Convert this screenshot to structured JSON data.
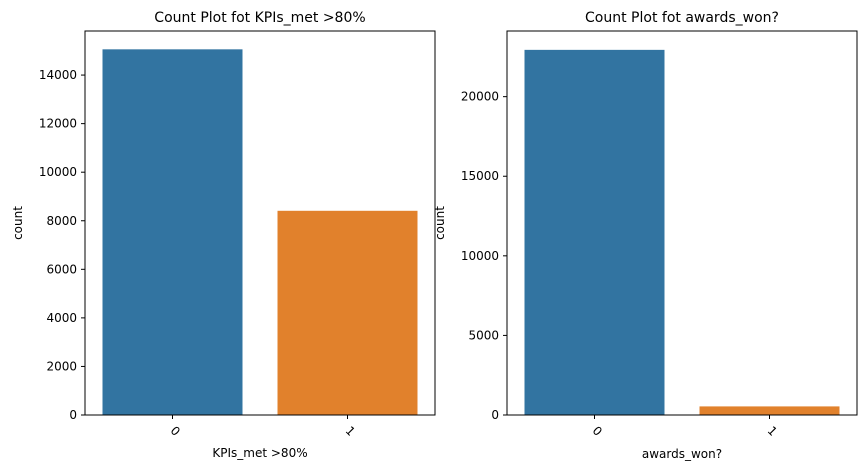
{
  "chart_data": [
    {
      "type": "bar",
      "title": "Count Plot fot KPIs_met >80%",
      "xlabel": "KPIs_met >80%",
      "ylabel": "count",
      "categories": [
        "0",
        "1"
      ],
      "values": [
        15060,
        8410
      ],
      "colors": [
        "#3274a1",
        "#e1812c"
      ],
      "ylim": [
        0,
        15815
      ],
      "yticks": [
        0,
        2000,
        4000,
        6000,
        8000,
        10000,
        12000,
        14000
      ],
      "xtick_rotation": 45,
      "grid": false,
      "legend": "none"
    },
    {
      "type": "bar",
      "title": "Count Plot fot awards_won?",
      "xlabel": "awards_won?",
      "ylabel": "count",
      "categories": [
        "0",
        "1"
      ],
      "values": [
        22940,
        540
      ],
      "colors": [
        "#3274a1",
        "#e1812c"
      ],
      "ylim": [
        0,
        24125
      ],
      "yticks": [
        0,
        5000,
        10000,
        15000,
        20000
      ],
      "xtick_rotation": 45,
      "grid": false,
      "legend": "none"
    }
  ]
}
